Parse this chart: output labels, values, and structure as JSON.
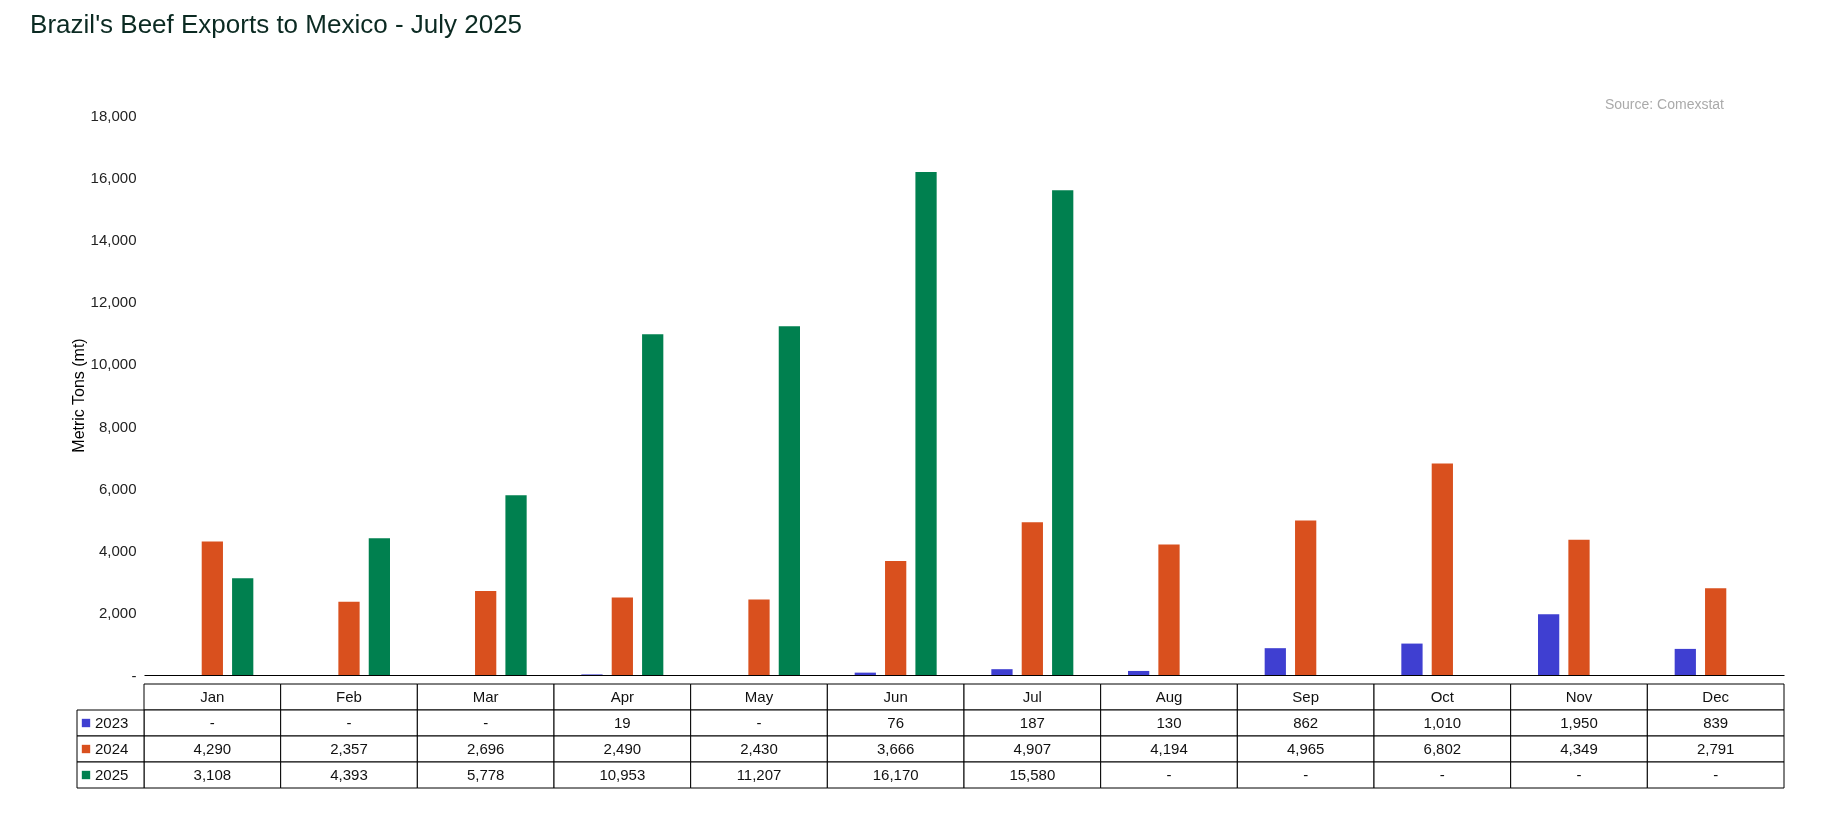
{
  "chart_data": {
    "type": "bar",
    "title": "Brazil's Beef Exports to Mexico -  July 2025",
    "ylabel": "Metric Tons (mt)",
    "annotations": [
      "Source: Comexstat"
    ],
    "categories": [
      "Jan",
      "Feb",
      "Mar",
      "Apr",
      "May",
      "Jun",
      "Jul",
      "Aug",
      "Sep",
      "Oct",
      "Nov",
      "Dec"
    ],
    "series": [
      {
        "name": "2023",
        "color": "#3f3fd1",
        "values": [
          null,
          null,
          null,
          19,
          null,
          76,
          187,
          130,
          862,
          1010,
          1950,
          839
        ],
        "value_labels": [
          "-",
          "-",
          "-",
          "19",
          "-",
          "76",
          "187",
          "130",
          "862",
          "1,010",
          "1,950",
          "839"
        ]
      },
      {
        "name": "2024",
        "color": "#d9501e",
        "values": [
          4290,
          2357,
          2696,
          2490,
          2430,
          3666,
          4907,
          4194,
          4965,
          6802,
          4349,
          2791
        ],
        "value_labels": [
          "4,290",
          "2,357",
          "2,696",
          "2,490",
          "2,430",
          "3,666",
          "4,907",
          "4,194",
          "4,965",
          "6,802",
          "4,349",
          "2,791"
        ]
      },
      {
        "name": "2025",
        "color": "#00804f",
        "values": [
          3108,
          4393,
          5778,
          10953,
          11207,
          16170,
          15580,
          null,
          null,
          null,
          null,
          null
        ],
        "value_labels": [
          "3,108",
          "4,393",
          "5,778",
          "10,953",
          "11,207",
          "16,170",
          "15,580",
          "-",
          "-",
          "-",
          "-",
          "-"
        ]
      }
    ],
    "ylim": [
      0,
      18000
    ],
    "yticks": [
      {
        "value": 0,
        "label": "-"
      },
      {
        "value": 2000,
        "label": "2,000"
      },
      {
        "value": 4000,
        "label": "4,000"
      },
      {
        "value": 6000,
        "label": "6,000"
      },
      {
        "value": 8000,
        "label": "8,000"
      },
      {
        "value": 10000,
        "label": "10,000"
      },
      {
        "value": 12000,
        "label": "12,000"
      },
      {
        "value": 14000,
        "label": "14,000"
      },
      {
        "value": 16000,
        "label": "16,000"
      },
      {
        "value": 18000,
        "label": "18,000"
      }
    ],
    "grid": false,
    "legend": "bottom"
  }
}
